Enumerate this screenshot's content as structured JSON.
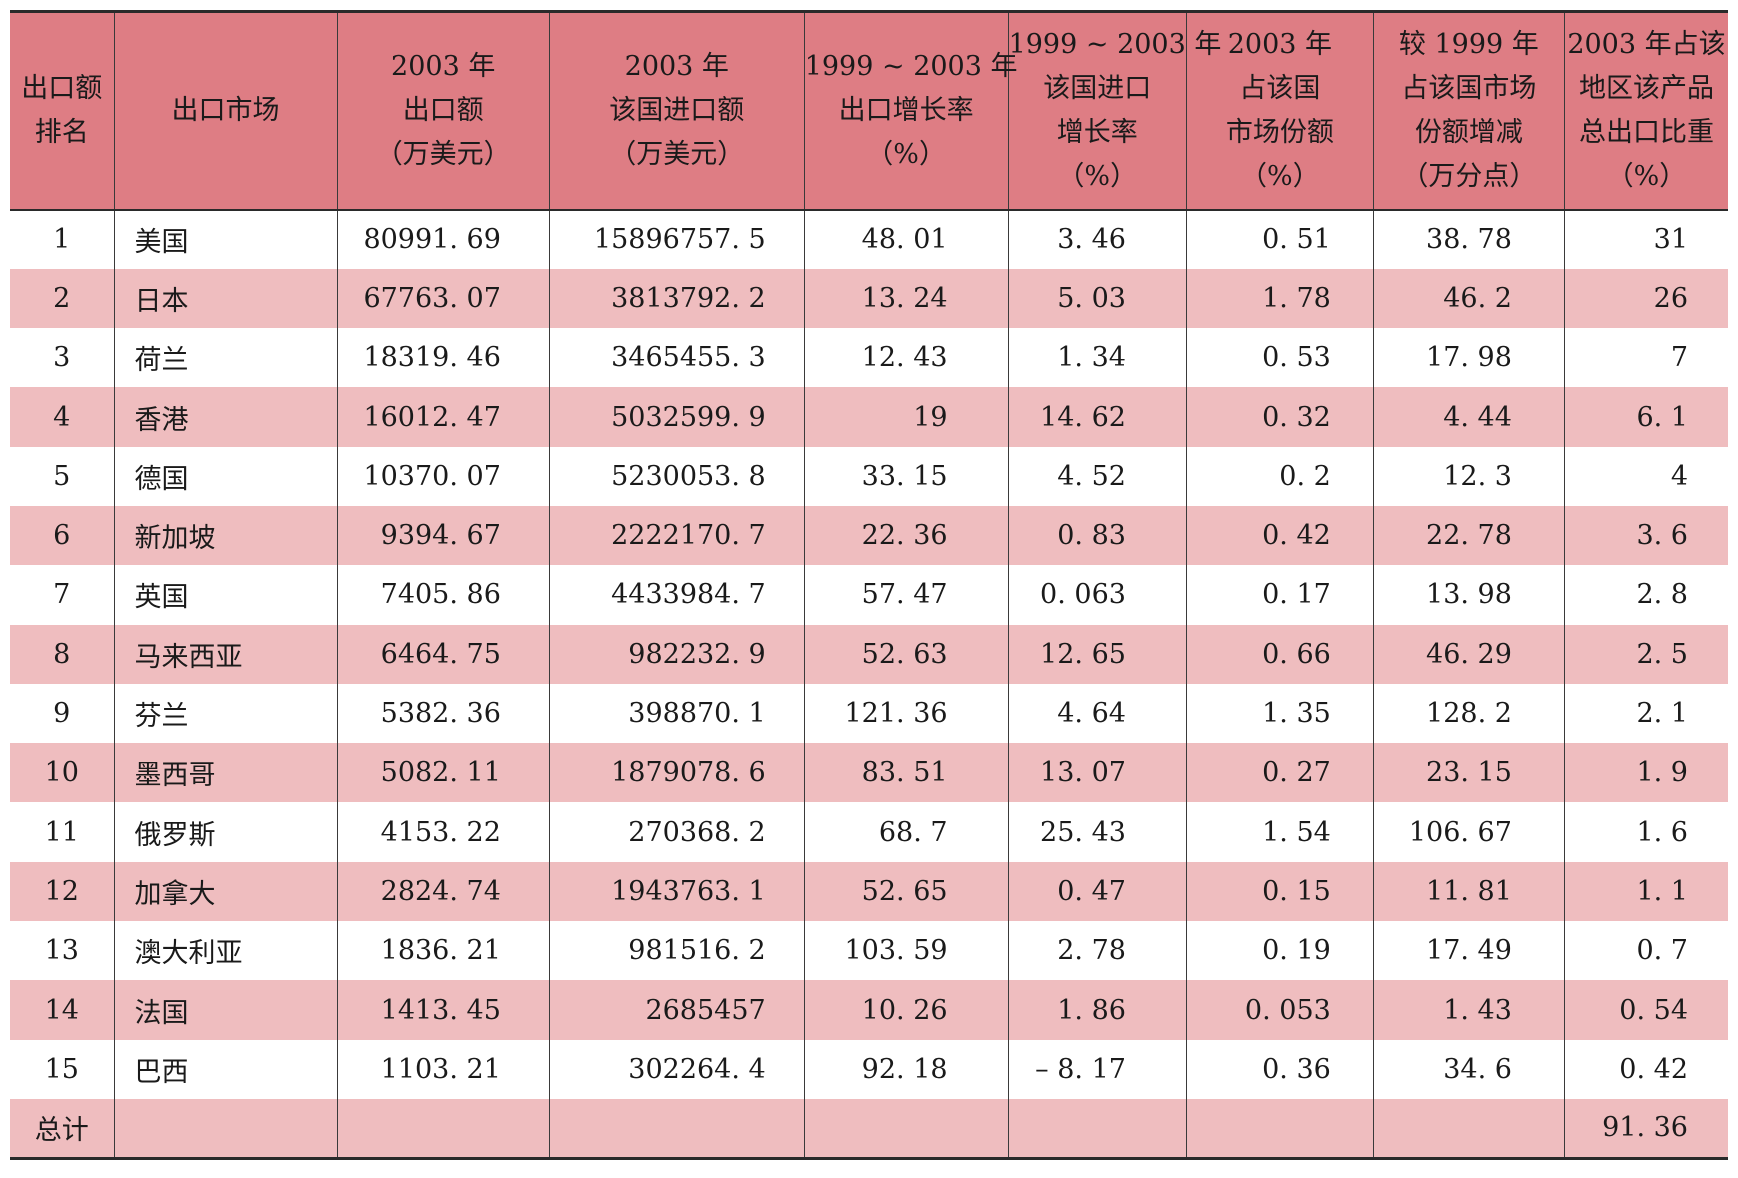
{
  "headers": [
    [
      "出口额",
      "排名"
    ],
    [
      "出口市场"
    ],
    [
      "2003 年",
      "出口额",
      "（万美元）"
    ],
    [
      "2003 年",
      "该国进口额",
      "（万美元）"
    ],
    [
      "1999 ~ 2003 年",
      "出口增长率",
      "（%）"
    ],
    [
      "1999 ~ 2003 年",
      "该国进口",
      "增长率",
      "（%）"
    ],
    [
      "2003 年",
      "占该国",
      "市场份额",
      "（%）"
    ],
    [
      "较 1999 年",
      "占该国市场",
      "份额增减",
      "（万分点）"
    ],
    [
      "2003 年占该",
      "地区该产品",
      "总出口比重",
      "（%）"
    ]
  ],
  "rows": [
    [
      "1",
      "美国",
      "80991. 69",
      "15896757. 5",
      "48. 01",
      "3. 46",
      "0. 51",
      "38. 78",
      "31"
    ],
    [
      "2",
      "日本",
      "67763. 07",
      "3813792. 2",
      "13. 24",
      "5. 03",
      "1. 78",
      "46. 2",
      "26"
    ],
    [
      "3",
      "荷兰",
      "18319. 46",
      "3465455. 3",
      "12. 43",
      "1. 34",
      "0. 53",
      "17. 98",
      "7"
    ],
    [
      "4",
      "香港",
      "16012. 47",
      "5032599. 9",
      "19",
      "14. 62",
      "0. 32",
      "4. 44",
      "6. 1"
    ],
    [
      "5",
      "德国",
      "10370. 07",
      "5230053. 8",
      "33. 15",
      "4. 52",
      "0. 2",
      "12. 3",
      "4"
    ],
    [
      "6",
      "新加坡",
      "9394. 67",
      "2222170. 7",
      "22. 36",
      "0. 83",
      "0. 42",
      "22. 78",
      "3. 6"
    ],
    [
      "7",
      "英国",
      "7405. 86",
      "4433984. 7",
      "57. 47",
      "0. 063",
      "0. 17",
      "13. 98",
      "2. 8"
    ],
    [
      "8",
      "马来西亚",
      "6464. 75",
      "982232. 9",
      "52. 63",
      "12. 65",
      "0. 66",
      "46. 29",
      "2. 5"
    ],
    [
      "9",
      "芬兰",
      "5382. 36",
      "398870. 1",
      "121. 36",
      "4. 64",
      "1. 35",
      "128. 2",
      "2. 1"
    ],
    [
      "10",
      "墨西哥",
      "5082. 11",
      "1879078. 6",
      "83. 51",
      "13. 07",
      "0. 27",
      "23. 15",
      "1. 9"
    ],
    [
      "11",
      "俄罗斯",
      "4153. 22",
      "270368. 2",
      "68. 7",
      "25. 43",
      "1. 54",
      "106. 67",
      "1. 6"
    ],
    [
      "12",
      "加拿大",
      "2824. 74",
      "1943763. 1",
      "52. 65",
      "0. 47",
      "0. 15",
      "11. 81",
      "1. 1"
    ],
    [
      "13",
      "澳大利亚",
      "1836. 21",
      "981516. 2",
      "103. 59",
      "2. 78",
      "0. 19",
      "17. 49",
      "0. 7"
    ],
    [
      "14",
      "法国",
      "1413. 45",
      "2685457",
      "10. 26",
      "1. 86",
      "0. 053",
      "1. 43",
      "0. 54"
    ],
    [
      "15",
      "巴西",
      "1103. 21",
      "302264. 4",
      "92. 18",
      "– 8. 17",
      "0. 36",
      "34. 6",
      "0. 42"
    ]
  ],
  "total": [
    "总计",
    "",
    "",
    "",
    "",
    "",
    "",
    "",
    "91. 36"
  ]
}
